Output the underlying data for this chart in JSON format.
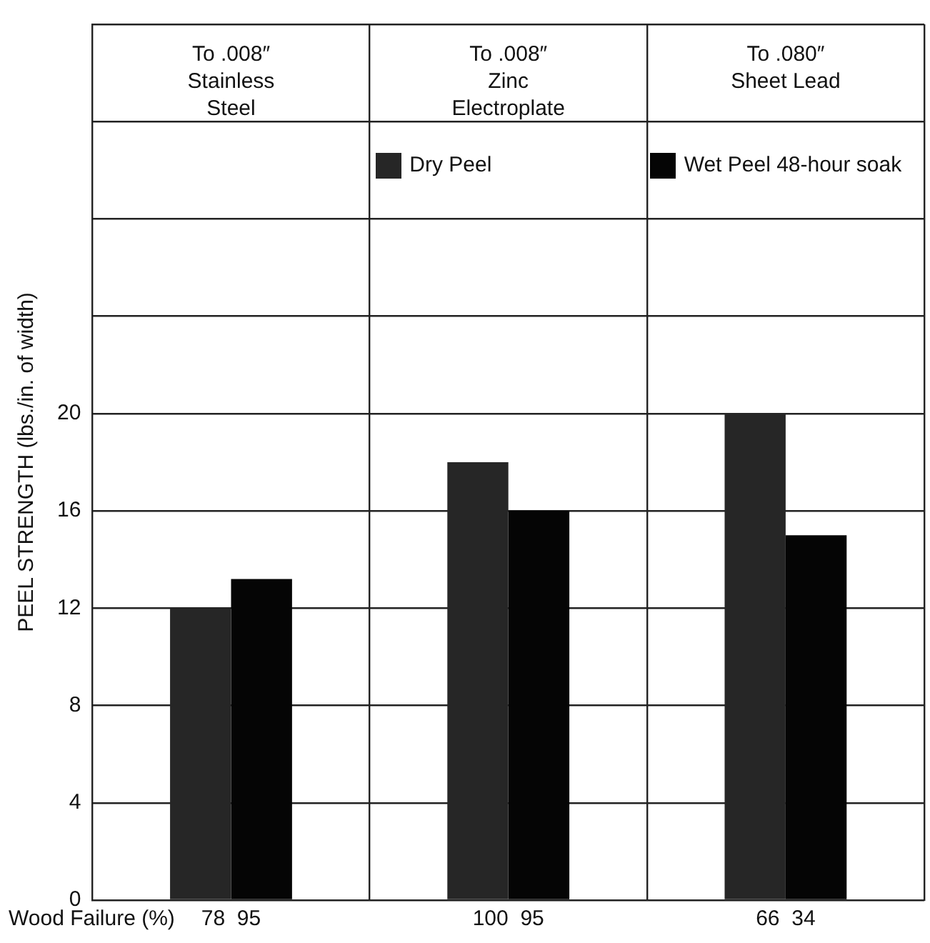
{
  "chart_data": {
    "type": "bar",
    "categories": [
      "To .008″ Stainless Steel",
      "To .008″ Zinc Electroplate",
      "To .080″ Sheet Lead"
    ],
    "series": [
      {
        "name": "Dry Peel",
        "color": "#262626",
        "values": [
          12,
          18,
          20
        ]
      },
      {
        "name": "Wet Peel 48-hour soak",
        "color": "#050505",
        "values": [
          13.2,
          16,
          15
        ]
      }
    ],
    "ylabel": "PEEL STRENGTH (lbs./in. of width)",
    "xlabel": "Wood Failure (%)",
    "annotations": [
      {
        "text": "78  95",
        "x": "To .008″ Stainless Steel",
        "y": 0
      },
      {
        "text": "100  95",
        "x": "To .008″ Zinc Electroplate",
        "y": 0
      },
      {
        "text": "66  34",
        "x": "To .080″ Sheet Lead",
        "y": 0
      }
    ],
    "ylim": [
      0,
      36
    ],
    "yticks": [
      0,
      4,
      8,
      12,
      16,
      20,
      {
        "value": 24,
        "label": null
      },
      {
        "value": 28,
        "label": null
      },
      {
        "value": 32,
        "label": null
      },
      {
        "value": 36,
        "label": null
      }
    ],
    "grid": true,
    "legend": "top right"
  }
}
